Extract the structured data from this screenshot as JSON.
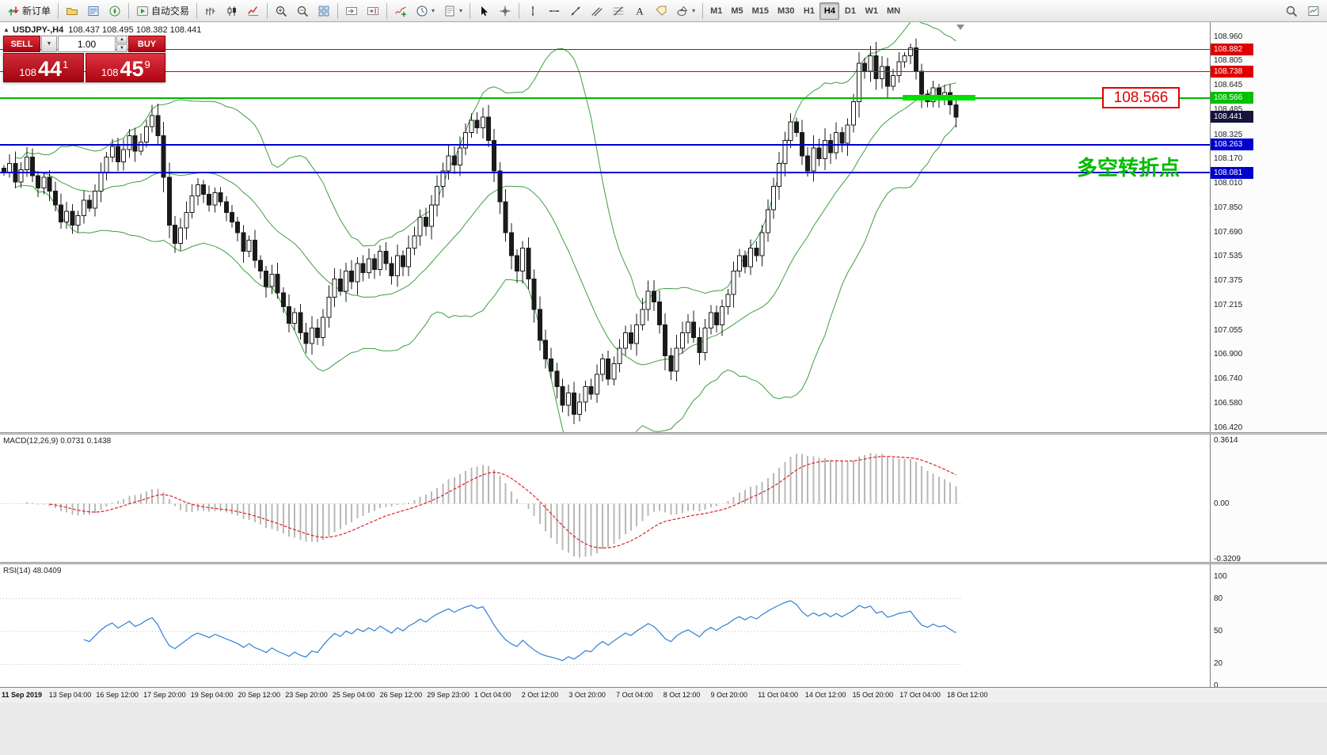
{
  "toolbar": {
    "groups": [
      {
        "items": [
          {
            "name": "new-order-button",
            "icon": "new-order",
            "label": "新订单"
          }
        ]
      },
      {
        "items": [
          {
            "name": "profiles-button",
            "icon": "profiles"
          },
          {
            "name": "market-watch-button",
            "icon": "market-watch"
          },
          {
            "name": "navigator-button",
            "icon": "navigator"
          }
        ]
      },
      {
        "items": [
          {
            "name": "autotrading-button",
            "icon": "autotrading",
            "label": "自动交易"
          }
        ]
      },
      {
        "items": [
          {
            "name": "bar-chart-button",
            "icon": "bar-chart"
          },
          {
            "name": "candlestick-button",
            "icon": "candlestick"
          },
          {
            "name": "line-chart-button",
            "icon": "line-chart"
          }
        ]
      },
      {
        "items": [
          {
            "name": "zoom-in-button",
            "icon": "zoom-in"
          },
          {
            "name": "zoom-out-button",
            "icon": "zoom-out"
          },
          {
            "name": "tile-windows-button",
            "icon": "tile-windows"
          }
        ]
      },
      {
        "items": [
          {
            "name": "auto-scroll-button",
            "icon": "auto-scroll"
          },
          {
            "name": "chart-shift-button",
            "icon": "chart-shift"
          }
        ]
      },
      {
        "items": [
          {
            "name": "indicators-button",
            "icon": "indicators"
          },
          {
            "name": "periods-button",
            "icon": "periods",
            "caret": true
          },
          {
            "name": "templates-button",
            "icon": "templates",
            "caret": true
          }
        ]
      },
      {
        "items": [
          {
            "name": "cursor-button",
            "icon": "cursor"
          },
          {
            "name": "crosshair-button",
            "icon": "crosshair"
          }
        ]
      },
      {
        "items": [
          {
            "name": "vertical-line-button",
            "icon": "vline"
          },
          {
            "name": "horizontal-line-button",
            "icon": "hline"
          },
          {
            "name": "trendline-button",
            "icon": "trendline"
          },
          {
            "name": "channel-button",
            "icon": "channel"
          },
          {
            "name": "fibonacci-button",
            "icon": "fibonacci"
          },
          {
            "name": "text-button",
            "icon": "text"
          },
          {
            "name": "label-button",
            "icon": "label"
          },
          {
            "name": "shapes-button",
            "icon": "shapes",
            "caret": true
          }
        ]
      }
    ],
    "timeframes": [
      "M1",
      "M5",
      "M15",
      "M30",
      "H1",
      "H4",
      "D1",
      "W1",
      "MN"
    ],
    "active_timeframe": "H4",
    "right_items": [
      {
        "name": "search-button",
        "icon": "search"
      },
      {
        "name": "new-chart-button",
        "icon": "new-chart"
      }
    ]
  },
  "chart_header": {
    "collapse_arrow": "▲",
    "symbol_period": "USDJPY-,H4",
    "ohlc": "108.437 108.495 108.382 108.441"
  },
  "trade_panel": {
    "sell_label": "SELL",
    "buy_label": "BUY",
    "volume": "1.00",
    "bid": {
      "small": "108",
      "big": "44",
      "sup": "1"
    },
    "ask": {
      "small": "108",
      "big": "45",
      "sup": "9"
    }
  },
  "price_axis": {
    "ticks": [
      "108.960",
      "108.805",
      "108.645",
      "108.485",
      "108.325",
      "108.170",
      "108.010",
      "107.850",
      "107.690",
      "107.535",
      "107.375",
      "107.215",
      "107.055",
      "106.900",
      "106.740",
      "106.580",
      "106.420"
    ],
    "tags": [
      {
        "label": "108.882",
        "bg": "#e00000"
      },
      {
        "label": "108.738",
        "bg": "#e00000"
      },
      {
        "label": "108.566",
        "bg": "#00c000"
      },
      {
        "label": "108.441",
        "bg": "#14143c"
      },
      {
        "label": "108.263",
        "bg": "#0000cc"
      },
      {
        "label": "108.081",
        "bg": "#0000cc"
      }
    ]
  },
  "annotations": {
    "pivot_price_label": "108.566",
    "turning_point_text": "多空转折点"
  },
  "macd_panel": {
    "label": "MACD(12,26,9) 0.0731 0.1438",
    "scale_top": "0.3614",
    "scale_zero": "0.00",
    "scale_bottom": "-0.3209"
  },
  "rsi_panel": {
    "label": "RSI(14) 48.0409",
    "scale": [
      "100",
      "80",
      "50",
      "20",
      "0"
    ]
  },
  "time_axis": {
    "labels": [
      "11 Sep 2019",
      "13 Sep 04:00",
      "16 Sep 12:00",
      "17 Sep 20:00",
      "19 Sep 04:00",
      "20 Sep 12:00",
      "23 Sep 20:00",
      "25 Sep 04:00",
      "26 Sep 12:00",
      "29 Sep 23:00",
      "1 Oct 04:00",
      "2 Oct 12:00",
      "3 Oct 20:00",
      "7 Oct 04:00",
      "8 Oct 12:00",
      "9 Oct 20:00",
      "11 Oct 04:00",
      "14 Oct 12:00",
      "15 Oct 20:00",
      "17 Oct 04:00",
      "18 Oct 12:00"
    ]
  },
  "chart_data": {
    "type": "candlestick",
    "symbol": "USDJPY",
    "timeframe": "H4",
    "last_price": 108.441,
    "price_range_visible": [
      106.42,
      108.96
    ],
    "levels": {
      "resistance": [
        108.882,
        108.738
      ],
      "pivot": 108.566,
      "support": [
        108.263,
        108.081
      ]
    },
    "indicators": {
      "bollinger_period": 20,
      "macd": {
        "fast": 12,
        "slow": 26,
        "signal": 9,
        "current_main": 0.0731,
        "current_signal": 0.1438,
        "scale_max": 0.3614,
        "scale_min": -0.3209
      },
      "rsi": {
        "period": 14,
        "current": 48.0409
      }
    },
    "closes": [
      108.08,
      108.14,
      108.02,
      108.1,
      108.18,
      108.06,
      107.98,
      108.05,
      107.96,
      107.87,
      107.76,
      107.83,
      107.74,
      107.8,
      107.9,
      107.85,
      107.96,
      108.08,
      108.18,
      108.25,
      108.15,
      108.23,
      108.32,
      108.22,
      108.28,
      108.38,
      108.45,
      108.32,
      108.05,
      107.74,
      107.62,
      107.72,
      107.82,
      107.93,
      108.0,
      107.94,
      107.87,
      107.95,
      107.89,
      107.82,
      107.76,
      107.69,
      107.57,
      107.64,
      107.51,
      107.44,
      107.34,
      107.42,
      107.3,
      107.21,
      107.1,
      107.17,
      107.04,
      106.97,
      107.07,
      107.01,
      107.14,
      107.27,
      107.39,
      107.31,
      107.44,
      107.37,
      107.49,
      107.43,
      107.52,
      107.45,
      107.57,
      107.49,
      107.41,
      107.54,
      107.47,
      107.59,
      107.67,
      107.79,
      107.73,
      107.87,
      107.99,
      108.09,
      108.19,
      108.13,
      108.24,
      108.34,
      108.42,
      108.37,
      108.44,
      108.29,
      108.09,
      107.89,
      107.69,
      107.54,
      107.44,
      107.59,
      107.39,
      107.19,
      106.99,
      106.87,
      106.79,
      106.69,
      106.57,
      106.65,
      106.51,
      106.59,
      106.69,
      106.64,
      106.77,
      106.87,
      106.74,
      106.84,
      106.94,
      107.04,
      106.97,
      107.09,
      107.19,
      107.31,
      107.24,
      107.09,
      106.89,
      106.79,
      106.94,
      107.04,
      107.11,
      107.01,
      106.91,
      107.07,
      107.17,
      107.09,
      107.21,
      107.29,
      107.44,
      107.54,
      107.47,
      107.59,
      107.54,
      107.69,
      107.84,
      107.99,
      108.14,
      108.29,
      108.41,
      108.34,
      108.19,
      108.09,
      108.24,
      108.17,
      108.29,
      108.21,
      108.34,
      108.27,
      108.39,
      108.54,
      108.79,
      108.74,
      108.84,
      108.69,
      108.77,
      108.64,
      108.71,
      108.8,
      108.84,
      108.89,
      108.74,
      108.59,
      108.54,
      108.63,
      108.57,
      108.6,
      108.52,
      108.44
    ]
  }
}
